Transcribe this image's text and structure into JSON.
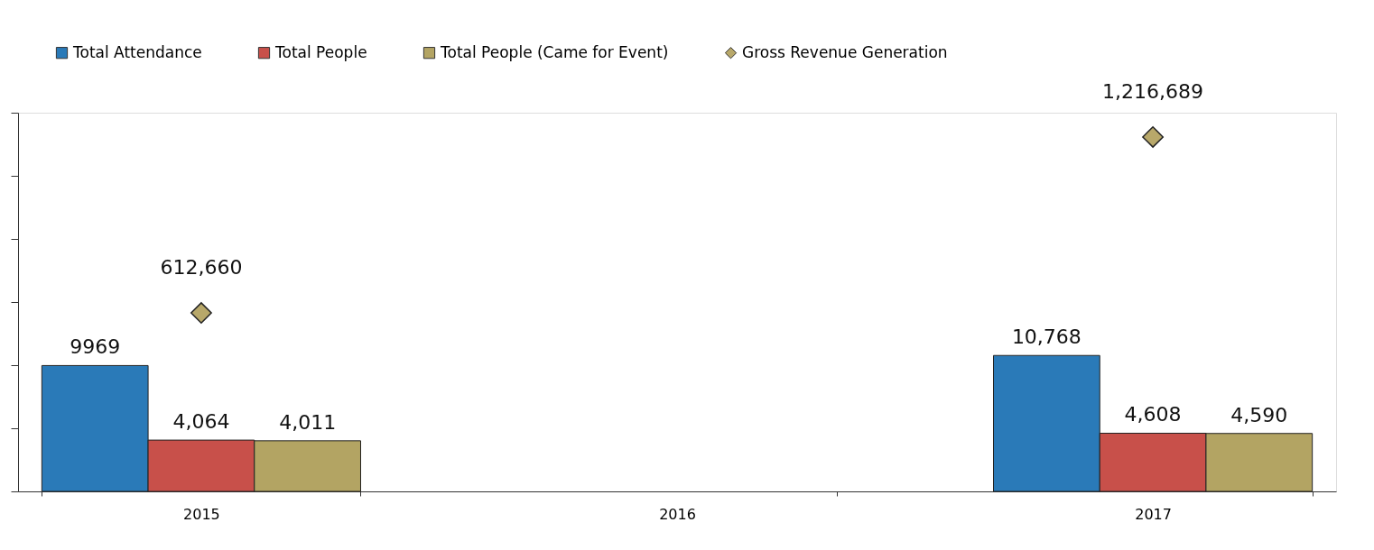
{
  "chart_data": {
    "type": "bar",
    "categories": [
      "2015",
      "2016",
      "2017"
    ],
    "series": [
      {
        "name": "Total Attendance",
        "color": "#2a7ab8",
        "values": [
          9969,
          null,
          10768
        ],
        "value_labels": [
          "9969",
          null,
          "10,768"
        ]
      },
      {
        "name": "Total People",
        "color": "#c8504a",
        "values": [
          4064,
          null,
          4608
        ],
        "value_labels": [
          "4,064",
          null,
          "4,608"
        ]
      },
      {
        "name": "Total People (Came for Event)",
        "color": "#b3a463",
        "values": [
          4011,
          null,
          4590
        ],
        "value_labels": [
          "4,011",
          null,
          "4,590"
        ]
      },
      {
        "name": "Gross Revenue Generation",
        "type": "scatter",
        "axis": "y2",
        "marker": "diamond",
        "color": "#b8a86a",
        "values": [
          612660,
          null,
          1216689
        ],
        "value_labels": [
          "612,660",
          null,
          "1,216,689"
        ]
      }
    ],
    "ylim": [
      0,
      30000
    ],
    "yticks": [
      {
        "value": 0,
        "label": null
      },
      {
        "value": 5000,
        "label": null
      },
      {
        "value": 10000,
        "label": null
      },
      {
        "value": 15000,
        "label": null
      },
      {
        "value": 20000,
        "label": null
      },
      {
        "value": 25000,
        "label": null
      },
      {
        "value": 30000,
        "label": null
      }
    ],
    "grid": false,
    "legend": "top"
  }
}
